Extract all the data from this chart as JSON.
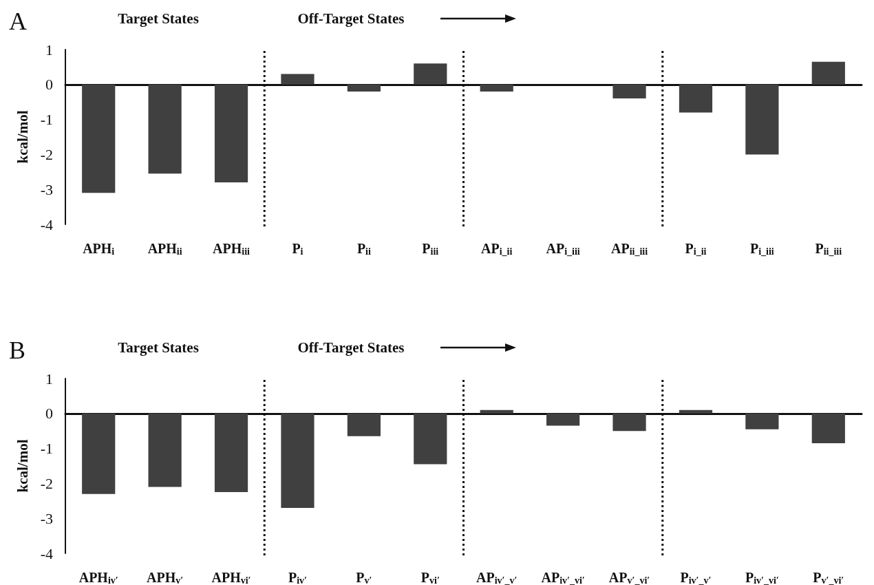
{
  "chart_data": [
    {
      "type": "bar",
      "title": "A",
      "annotations": [
        "Target States",
        "Off-Target States"
      ],
      "ylabel": "kcal/mol",
      "categories": [
        "APH$_{i}$",
        "APH$_{ii}$",
        "APH$_{iii}$",
        "P$_{i}$",
        "P$_{ii}$",
        "P$_{iii}$",
        "AP$_{i_ii}$",
        "AP$_{i_iii}$",
        "AP$_{ii_iii}$",
        "P$_{i_ii}$",
        "P$_{i_iii}$",
        "P$_{ii_iii}$"
      ],
      "values": [
        -3.1,
        -2.55,
        -2.8,
        0.3,
        -0.2,
        0.6,
        -0.2,
        0,
        -0.4,
        -0.8,
        -2.0,
        0.65
      ],
      "color": "#404040",
      "ylim": [
        -4,
        1
      ],
      "yticks": [
        -4,
        -3,
        -2,
        -1,
        0,
        1
      ]
    },
    {
      "type": "bar",
      "title": "B",
      "annotations": [
        "Target States",
        "Off-Target States"
      ],
      "ylabel": "kcal/mol",
      "categories": [
        "APH$_{iv′}$",
        "APH$_{v′}$",
        "APH$_{vi′}$",
        "P$_{iv′}$",
        "P$_{v′}$",
        "P$_{vi′}$",
        "AP$_{iv′_v′}$",
        "AP$_{iv′_vi′}$",
        "AP$_{v′_vi′}$",
        "P$_{iv′_v′}$",
        "P$_{iv′_vi′}$",
        "P$_{v′_vi′}$"
      ],
      "values": [
        -2.3,
        -2.1,
        -2.25,
        -2.7,
        -0.65,
        -1.45,
        0.1,
        -0.35,
        -0.5,
        0.1,
        -0.45,
        -0.85
      ],
      "color": "#404040",
      "ylim": [
        -4,
        1
      ],
      "yticks": [
        -4,
        -3,
        -2,
        -1,
        0,
        1
      ]
    }
  ]
}
